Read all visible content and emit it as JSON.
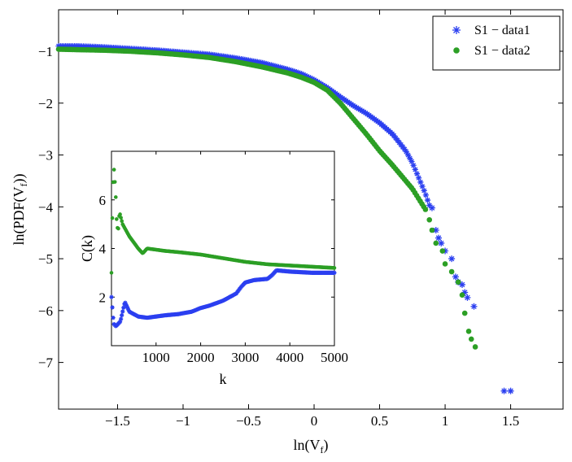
{
  "colors": {
    "data1": "#2b3ff0",
    "data2": "#2c9f25",
    "axis": "#000000",
    "background": "#ffffff"
  },
  "chart_data": [
    {
      "type": "scatter",
      "role": "main",
      "title": "",
      "xlabel": "ln(V_f)",
      "ylabel": "ln(PDF(V_f))",
      "xlim": [
        -1.95,
        1.9
      ],
      "ylim": [
        -7.9,
        -0.2
      ],
      "xticks": [
        -1.5,
        -1,
        -0.5,
        0,
        0.5,
        1,
        1.5
      ],
      "xtick_labels": [
        "−1.5",
        "−1",
        "−0.5",
        "0",
        "0.5",
        "1",
        "1.5"
      ],
      "yticks": [
        -7,
        -6,
        -5,
        -4,
        -3,
        -2,
        -1
      ],
      "ytick_labels": [
        "−7",
        "−6",
        "−5",
        "−4",
        "−3",
        "−2",
        "−1"
      ],
      "legend": {
        "position": "top-right",
        "entries": [
          "S1 − data1",
          "S1 − data2"
        ]
      },
      "series": [
        {
          "name": "S1 − data1",
          "marker": "asterisk",
          "x": [
            -1.95,
            -1.8,
            -1.6,
            -1.4,
            -1.2,
            -1.0,
            -0.8,
            -0.6,
            -0.4,
            -0.2,
            -0.1,
            0.0,
            0.1,
            0.2,
            0.3,
            0.4,
            0.5,
            0.6,
            0.7,
            0.75,
            0.8,
            0.85,
            0.88
          ],
          "y": [
            -0.9,
            -0.9,
            -0.92,
            -0.95,
            -0.98,
            -1.02,
            -1.06,
            -1.13,
            -1.22,
            -1.35,
            -1.43,
            -1.55,
            -1.7,
            -1.88,
            -2.05,
            -2.2,
            -2.38,
            -2.6,
            -2.92,
            -3.15,
            -3.45,
            -3.75,
            -3.97
          ],
          "sparse_points": [
            [
              0.9,
              -4.02
            ],
            [
              0.93,
              -4.45
            ],
            [
              0.95,
              -4.6
            ],
            [
              0.97,
              -4.7
            ],
            [
              1.0,
              -4.85
            ],
            [
              1.05,
              -5.0
            ],
            [
              1.08,
              -5.35
            ],
            [
              1.1,
              -5.45
            ],
            [
              1.13,
              -5.5
            ],
            [
              1.15,
              -5.65
            ],
            [
              1.17,
              -5.75
            ],
            [
              1.22,
              -5.92
            ],
            [
              1.45,
              -7.55
            ],
            [
              1.5,
              -7.55
            ]
          ]
        },
        {
          "name": "S1 − data2",
          "marker": "circle",
          "x": [
            -1.95,
            -1.8,
            -1.6,
            -1.4,
            -1.2,
            -1.0,
            -0.8,
            -0.6,
            -0.4,
            -0.2,
            -0.1,
            0.0,
            0.1,
            0.2,
            0.3,
            0.4,
            0.5,
            0.6,
            0.7,
            0.75,
            0.8,
            0.85
          ],
          "y": [
            -0.96,
            -0.97,
            -0.98,
            -1.0,
            -1.03,
            -1.07,
            -1.12,
            -1.2,
            -1.3,
            -1.42,
            -1.5,
            -1.6,
            -1.75,
            -2.0,
            -2.3,
            -2.6,
            -2.92,
            -3.2,
            -3.5,
            -3.65,
            -3.85,
            -4.05
          ],
          "sparse_points": [
            [
              0.88,
              -4.25
            ],
            [
              0.9,
              -4.45
            ],
            [
              0.93,
              -4.7
            ],
            [
              0.98,
              -4.85
            ],
            [
              1.0,
              -5.1
            ],
            [
              1.05,
              -5.25
            ],
            [
              1.1,
              -5.45
            ],
            [
              1.13,
              -5.7
            ],
            [
              1.15,
              -6.05
            ],
            [
              1.18,
              -6.4
            ],
            [
              1.2,
              -6.55
            ],
            [
              1.23,
              -6.7
            ]
          ]
        }
      ]
    },
    {
      "type": "scatter",
      "role": "inset",
      "title": "",
      "xlabel": "k",
      "ylabel": "C(k)",
      "xlim": [
        0,
        5000
      ],
      "ylim": [
        0,
        8
      ],
      "xticks": [
        1000,
        2000,
        3000,
        4000,
        5000
      ],
      "xtick_labels": [
        "1000",
        "2000",
        "3000",
        "4000",
        "5000"
      ],
      "yticks": [
        2,
        4,
        6
      ],
      "ytick_labels": [
        "2",
        "4",
        "6"
      ],
      "series": [
        {
          "name": "S1 − data1",
          "marker": "asterisk",
          "x": [
            0,
            50,
            100,
            150,
            200,
            300,
            400,
            600,
            800,
            1000,
            1200,
            1500,
            1800,
            2000,
            2200,
            2500,
            2800,
            2900,
            3000,
            3200,
            3500,
            3600,
            3700,
            4000,
            4500,
            5000
          ],
          "y": [
            2.0,
            0.9,
            0.8,
            0.9,
            1.0,
            1.8,
            1.4,
            1.2,
            1.15,
            1.2,
            1.25,
            1.3,
            1.4,
            1.55,
            1.65,
            1.85,
            2.15,
            2.4,
            2.6,
            2.7,
            2.75,
            2.9,
            3.1,
            3.05,
            3.0,
            3.0
          ]
        },
        {
          "name": "S1 − data2",
          "marker": "circle",
          "x": [
            0,
            30,
            60,
            100,
            120,
            150,
            180,
            250,
            400,
            600,
            700,
            800,
            1000,
            1200,
            1500,
            2000,
            2500,
            3000,
            3500,
            4000,
            4500,
            5000
          ],
          "y": [
            3.0,
            6.5,
            7.3,
            6.0,
            5.0,
            4.7,
            5.5,
            5.0,
            4.5,
            4.0,
            3.8,
            4.0,
            3.95,
            3.9,
            3.85,
            3.75,
            3.6,
            3.45,
            3.35,
            3.3,
            3.25,
            3.2
          ]
        }
      ]
    }
  ]
}
